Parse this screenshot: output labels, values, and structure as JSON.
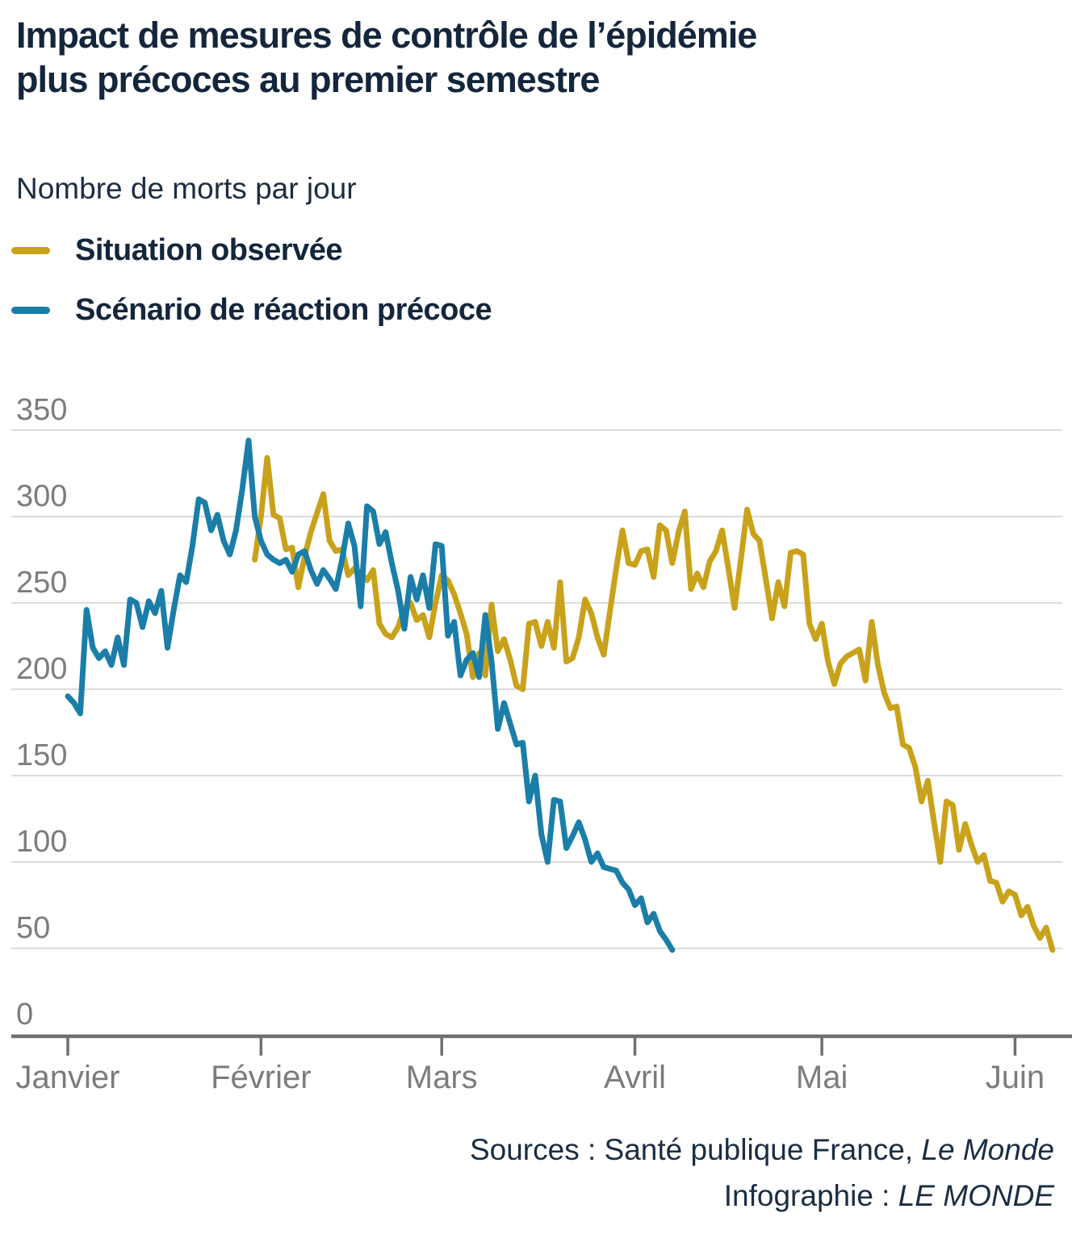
{
  "title": {
    "line1": "Impact de mesures de contrôle de l’épidémie",
    "line2": "plus précoces au premier semestre"
  },
  "subtitle": "Nombre de morts par jour",
  "footer": {
    "sources_prefix": "Sources : Santé publique France, ",
    "sources_italic": "Le Monde",
    "infographie_prefix": "Infographie : ",
    "infographie_italic": "LE MONDE"
  },
  "chart_data": {
    "type": "line",
    "title": "Impact de mesures de contrôle de l’épidémie plus précoces au premier semestre",
    "ylabel": "Nombre de morts par jour",
    "xlabel": "",
    "grid": true,
    "legend_position": "top-left",
    "colors": {
      "observed": "#C9A21B",
      "scenario": "#1B7EA8"
    },
    "y_axis": {
      "ticks": [
        0,
        50,
        100,
        150,
        200,
        250,
        300,
        350
      ],
      "range": [
        0,
        350
      ]
    },
    "x_axis": {
      "tick_labels": [
        "Janvier",
        "Février",
        "Mars",
        "Avril",
        "Mai",
        "Juin"
      ],
      "tick_day_offsets": [
        0,
        31,
        60,
        91,
        121,
        152
      ],
      "unit": "jour (décalage depuis le 1er janvier)"
    },
    "series": [
      {
        "name": "Situation observée",
        "color": "#C9A21B",
        "start_day": 30,
        "values": [
          275,
          300,
          334,
          301,
          299,
          281,
          282,
          259,
          277,
          291,
          302,
          313,
          286,
          280,
          281,
          266,
          270,
          267,
          263,
          269,
          238,
          232,
          230,
          236,
          247,
          250,
          240,
          243,
          230,
          250,
          266,
          263,
          255,
          244,
          232,
          207,
          221,
          208,
          249,
          222,
          229,
          217,
          202,
          200,
          238,
          239,
          225,
          239,
          224,
          262,
          216,
          218,
          230,
          252,
          244,
          230,
          220,
          245,
          270,
          292,
          273,
          272,
          280,
          281,
          265,
          295,
          292,
          273,
          291,
          303,
          258,
          267,
          259,
          274,
          280,
          292,
          270,
          247,
          275,
          304,
          290,
          286,
          264,
          241,
          262,
          248,
          279,
          280,
          278,
          238,
          229,
          238,
          216,
          203,
          215,
          219,
          221,
          223,
          205,
          239,
          214,
          198,
          189,
          190,
          168,
          166,
          155,
          135,
          147,
          123,
          100,
          135,
          133,
          107,
          122,
          110,
          100,
          104,
          89,
          88,
          77,
          83,
          81,
          69,
          74,
          63,
          56,
          62,
          49
        ]
      },
      {
        "name": "Scénario de réaction précoce",
        "color": "#1B7EA8",
        "start_day": 0,
        "values": [
          196,
          192,
          186,
          246,
          224,
          218,
          222,
          214,
          230,
          214,
          252,
          250,
          236,
          251,
          244,
          257,
          224,
          246,
          266,
          262,
          283,
          310,
          308,
          292,
          301,
          286,
          278,
          292,
          316,
          344,
          300,
          286,
          278,
          275,
          273,
          275,
          268,
          278,
          280,
          269,
          261,
          269,
          264,
          258,
          275,
          296,
          283,
          248,
          306,
          303,
          284,
          291,
          273,
          257,
          235,
          265,
          252,
          266,
          247,
          284,
          283,
          231,
          239,
          208,
          217,
          221,
          207,
          243,
          216,
          177,
          192,
          180,
          168,
          169,
          135,
          150,
          116,
          100,
          136,
          135,
          108,
          115,
          123,
          113,
          100,
          105,
          97,
          96,
          95,
          88,
          84,
          75,
          79,
          65,
          70,
          60,
          55,
          49
        ]
      }
    ]
  }
}
